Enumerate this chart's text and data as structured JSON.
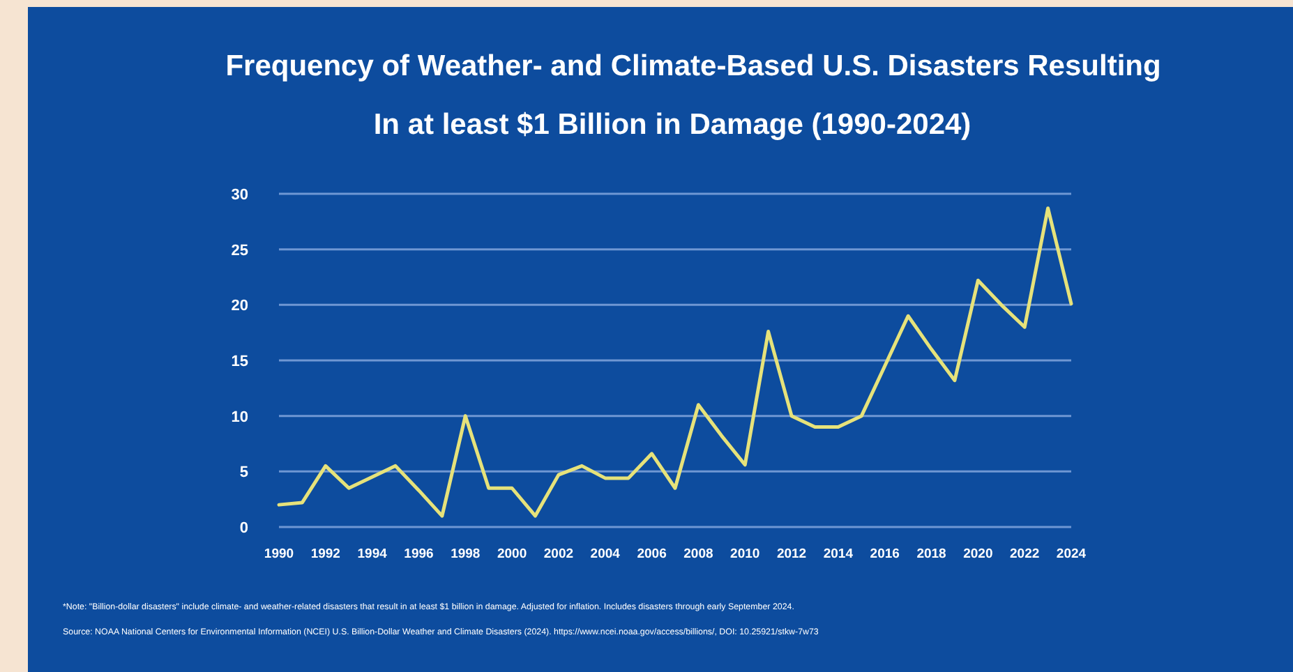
{
  "chart_data": {
    "type": "line",
    "title": "Frequency of Weather- and Climate-Based  U.S. Disasters Resulting",
    "subtitle": "In at least $1 Billion in Damage (1990-2024)",
    "x": [
      1990,
      1991,
      1992,
      1993,
      1994,
      1995,
      1996,
      1997,
      1998,
      1999,
      2000,
      2001,
      2002,
      2003,
      2004,
      2005,
      2006,
      2007,
      2008,
      2009,
      2010,
      2011,
      2012,
      2013,
      2014,
      2015,
      2016,
      2017,
      2018,
      2019,
      2020,
      2021,
      2022,
      2023,
      2024
    ],
    "series": [
      {
        "color": "#e6e27a",
        "values": [
          2,
          2.2,
          5.5,
          3.5,
          4.5,
          5.5,
          3.3,
          1,
          10,
          3.5,
          3.5,
          1,
          4.7,
          5.5,
          4.4,
          4.4,
          6.6,
          3.5,
          11,
          8.2,
          5.6,
          17.6,
          10,
          9,
          9,
          10,
          14.5,
          19,
          16,
          13.2,
          22.2,
          20,
          18,
          28.7,
          20.1
        ]
      }
    ],
    "xlim": [
      1990,
      2024
    ],
    "xticks": [
      1990,
      1992,
      1994,
      1996,
      1998,
      2000,
      2002,
      2004,
      2006,
      2008,
      2010,
      2012,
      2014,
      2016,
      2018,
      2020,
      2022,
      2024
    ],
    "ylim": [
      0,
      30
    ],
    "yticks": [
      0,
      5,
      10,
      15,
      20,
      25,
      30
    ],
    "grid": "y",
    "marker": "none",
    "line_style": "solid",
    "annotations": [
      "*Note: \"Billion-dollar disasters\" include climate- and weather-related disasters that result in at least $1 billion in damage. Adjusted for inflation. Includes disasters through early September 2024.",
      "Source: NOAA National Centers for Environmental Information (NCEI) U.S. Billion-Dollar Weather and Climate Disasters (2024). https://www.ncei.noaa.gov/access/billions/, DOI: 10.25921/stkw-7w73"
    ]
  }
}
